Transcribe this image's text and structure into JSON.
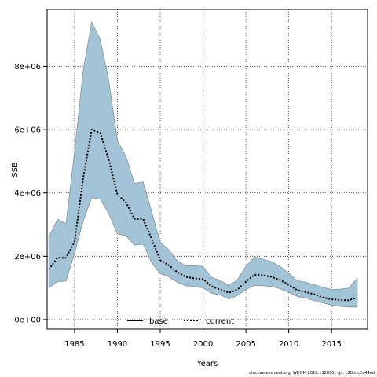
{
  "chart_data": {
    "type": "line",
    "xlabel": "Years",
    "ylabel": "SSB",
    "xlim": [
      1981.8,
      2019.2
    ],
    "ylim": [
      -300000,
      9800000
    ],
    "x_ticks": [
      1985,
      1990,
      1995,
      2000,
      2005,
      2010,
      2015
    ],
    "y_ticks": [
      0,
      2000000,
      4000000,
      6000000,
      8000000
    ],
    "y_tick_labels": [
      "0e+00",
      "2e+06",
      "4e+06",
      "6e+06",
      "8e+06"
    ],
    "grid": true,
    "grid_style": "dotted",
    "legend_position": "bottom-center",
    "legend": [
      {
        "label": "base",
        "style": "solid",
        "color": "#000000"
      },
      {
        "label": "current",
        "style": "dotted",
        "color": "#000000"
      }
    ],
    "x": [
      1982,
      1983,
      1984,
      1985,
      1986,
      1987,
      1988,
      1989,
      1990,
      1991,
      1992,
      1993,
      1994,
      1995,
      1996,
      1997,
      1998,
      1999,
      2000,
      2001,
      2002,
      2003,
      2004,
      2005,
      2006,
      2007,
      2008,
      2009,
      2010,
      2011,
      2012,
      2013,
      2014,
      2015,
      2016,
      2017,
      2018
    ],
    "series": [
      {
        "name": "current",
        "values": [
          1580000,
          1950000,
          1950000,
          2450000,
          4450000,
          6000000,
          5900000,
          5050000,
          3950000,
          3700000,
          3180000,
          3180000,
          2550000,
          1880000,
          1720000,
          1500000,
          1350000,
          1300000,
          1280000,
          1050000,
          950000,
          850000,
          950000,
          1200000,
          1420000,
          1400000,
          1350000,
          1250000,
          1100000,
          930000,
          870000,
          800000,
          700000,
          640000,
          620000,
          610000,
          700000
        ],
        "lower": [
          1000000,
          1200000,
          1220000,
          2100000,
          3100000,
          3850000,
          3800000,
          3350000,
          2700000,
          2650000,
          2350000,
          2380000,
          1800000,
          1450000,
          1350000,
          1180000,
          1070000,
          1050000,
          1000000,
          830000,
          780000,
          650000,
          760000,
          950000,
          1080000,
          1070000,
          1050000,
          970000,
          870000,
          730000,
          680000,
          600000,
          530000,
          460000,
          420000,
          400000,
          400000
        ],
        "upper": [
          2600000,
          3170000,
          3030000,
          5300000,
          7850000,
          9400000,
          8850000,
          7550000,
          5650000,
          5150000,
          4300000,
          4350000,
          3400000,
          2450000,
          2200000,
          1850000,
          1700000,
          1700000,
          1680000,
          1330000,
          1230000,
          1080000,
          1250000,
          1680000,
          1980000,
          1900000,
          1830000,
          1680000,
          1460000,
          1230000,
          1180000,
          1100000,
          1020000,
          950000,
          960000,
          1000000,
          1300000
        ]
      }
    ],
    "band_color": "#a3c4d6",
    "band_edge_color": "#7f939c"
  },
  "footer_text": "stockassessment.org, WHOM 2019, r12830 , git: c28bdc2a44ad"
}
